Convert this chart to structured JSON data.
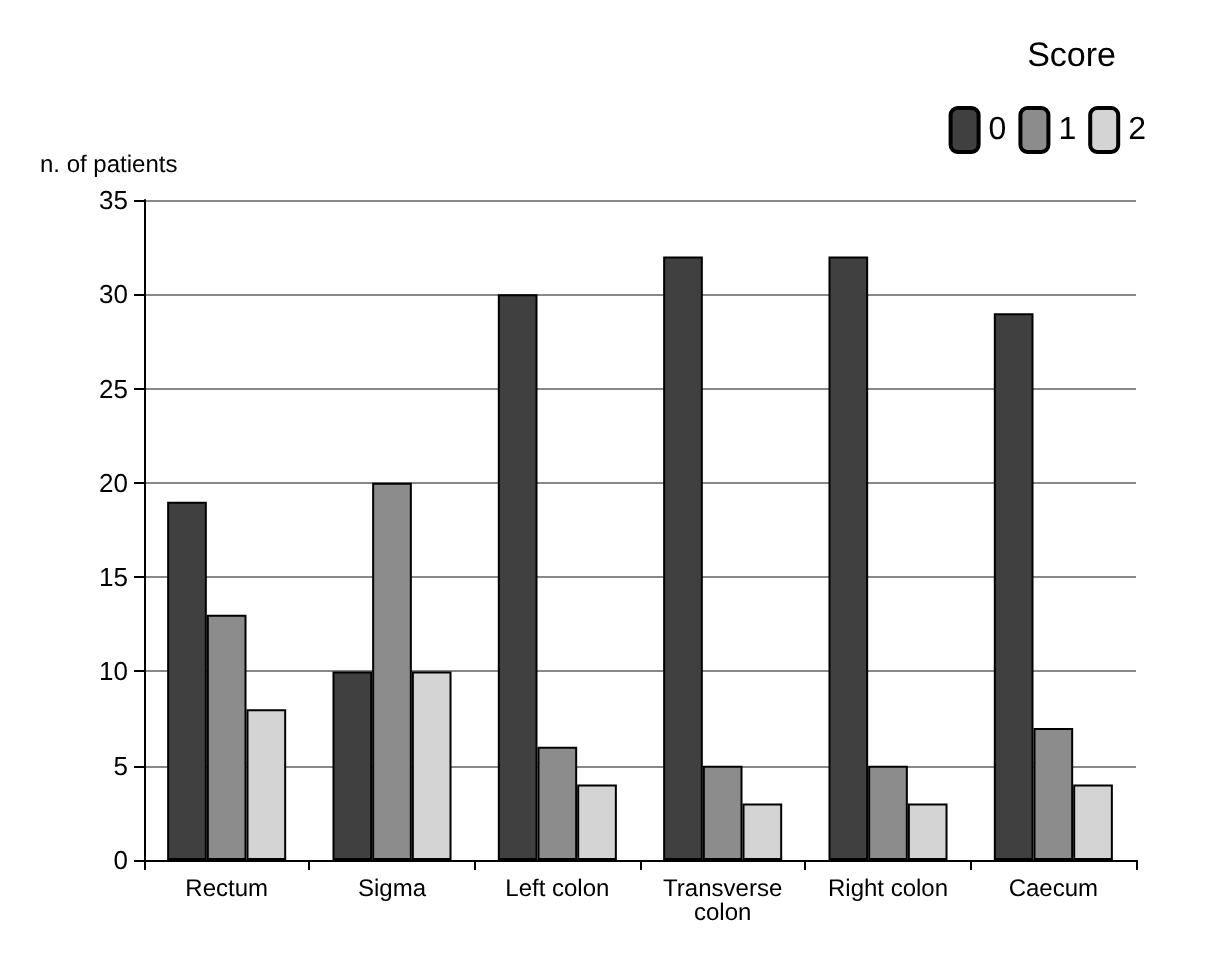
{
  "chart_data": {
    "type": "bar",
    "ylabel": "n. of patients",
    "legend_title": "Score",
    "categories": [
      "Rectum",
      "Sigma",
      "Left colon",
      "Transverse\ncolon",
      "Right colon",
      "Caecum"
    ],
    "series": [
      {
        "name": "0",
        "color": "#404040",
        "values": [
          19,
          10,
          30,
          32,
          32,
          29
        ]
      },
      {
        "name": "1",
        "color": "#8c8c8c",
        "values": [
          13,
          20,
          6,
          5,
          5,
          7
        ]
      },
      {
        "name": "2",
        "color": "#d4d4d4",
        "values": [
          8,
          10,
          4,
          3,
          3,
          4
        ]
      }
    ],
    "ylim": [
      0,
      35
    ],
    "yticks": [
      0,
      5,
      10,
      15,
      20,
      25,
      30,
      35
    ],
    "grid": "y",
    "legend": "top right"
  }
}
